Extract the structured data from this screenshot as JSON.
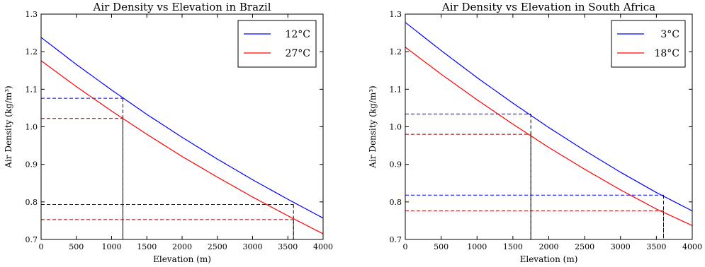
{
  "chart_data": [
    {
      "type": "line",
      "title": "Air Density vs Elevation in Brazil",
      "xlabel": "Elevation (m)",
      "ylabel": "Air Density (kg/m³)",
      "xlim": [
        0,
        4000
      ],
      "ylim": [
        0.7,
        1.3
      ],
      "xticks": [
        "0",
        "500",
        "1000",
        "1500",
        "2000",
        "2500",
        "3000",
        "3500",
        "4000"
      ],
      "yticks": [
        "0.7",
        "0.8",
        "0.9",
        "1.0",
        "1.1",
        "1.2",
        "1.3"
      ],
      "grid": false,
      "legend_position": "top-right",
      "series": [
        {
          "name": "12°C",
          "color": "#0000ff",
          "x": [
            0,
            500,
            1000,
            1500,
            2000,
            2500,
            3000,
            3500,
            4000
          ],
          "y": [
            1.238,
            1.166,
            1.098,
            1.033,
            0.972,
            0.914,
            0.859,
            0.807,
            0.757
          ]
        },
        {
          "name": "27°C",
          "color": "#ff0000",
          "x": [
            0,
            500,
            1000,
            1500,
            2000,
            2500,
            3000,
            3500,
            4000
          ],
          "y": [
            1.176,
            1.107,
            1.042,
            0.98,
            0.921,
            0.866,
            0.813,
            0.763,
            0.715
          ]
        }
      ],
      "reference_lines": [
        {
          "x": 1160,
          "y": 1.076,
          "color": "#0000ff"
        },
        {
          "x": 1160,
          "y": 1.022,
          "color": "#8b0000"
        },
        {
          "x": 3580,
          "y": 0.793,
          "color": "#0000ff"
        },
        {
          "x": 3580,
          "y": 0.753,
          "color": "#8b0000"
        }
      ]
    },
    {
      "type": "line",
      "title": "Air Density vs Elevation in South Africa",
      "xlabel": "Elevation (m)",
      "ylabel": "Air Density (kg/m³)",
      "xlim": [
        0,
        4000
      ],
      "ylim": [
        0.7,
        1.3
      ],
      "xticks": [
        "0",
        "500",
        "1000",
        "1500",
        "2000",
        "2500",
        "3000",
        "3500",
        "4000"
      ],
      "yticks": [
        "0.7",
        "0.8",
        "0.9",
        "1.0",
        "1.1",
        "1.2",
        "1.3"
      ],
      "grid": false,
      "legend_position": "top-right",
      "series": [
        {
          "name": "3°C",
          "color": "#0000ff",
          "x": [
            0,
            500,
            1000,
            1500,
            2000,
            2500,
            3000,
            3500,
            4000
          ],
          "y": [
            1.278,
            1.203,
            1.131,
            1.063,
            0.998,
            0.937,
            0.879,
            0.825,
            0.776
          ]
        },
        {
          "name": "18°C",
          "color": "#ff0000",
          "x": [
            0,
            500,
            1000,
            1500,
            2000,
            2500,
            3000,
            3500,
            4000
          ],
          "y": [
            1.212,
            1.14,
            1.072,
            1.007,
            0.945,
            0.887,
            0.832,
            0.781,
            0.737
          ]
        }
      ],
      "reference_lines": [
        {
          "x": 1750,
          "y": 1.034,
          "color": "#0000ff"
        },
        {
          "x": 1750,
          "y": 0.98,
          "color": "#8b0000"
        },
        {
          "x": 3600,
          "y": 0.818,
          "color": "#0000ff"
        },
        {
          "x": 3600,
          "y": 0.776,
          "color": "#8b0000"
        }
      ]
    }
  ]
}
